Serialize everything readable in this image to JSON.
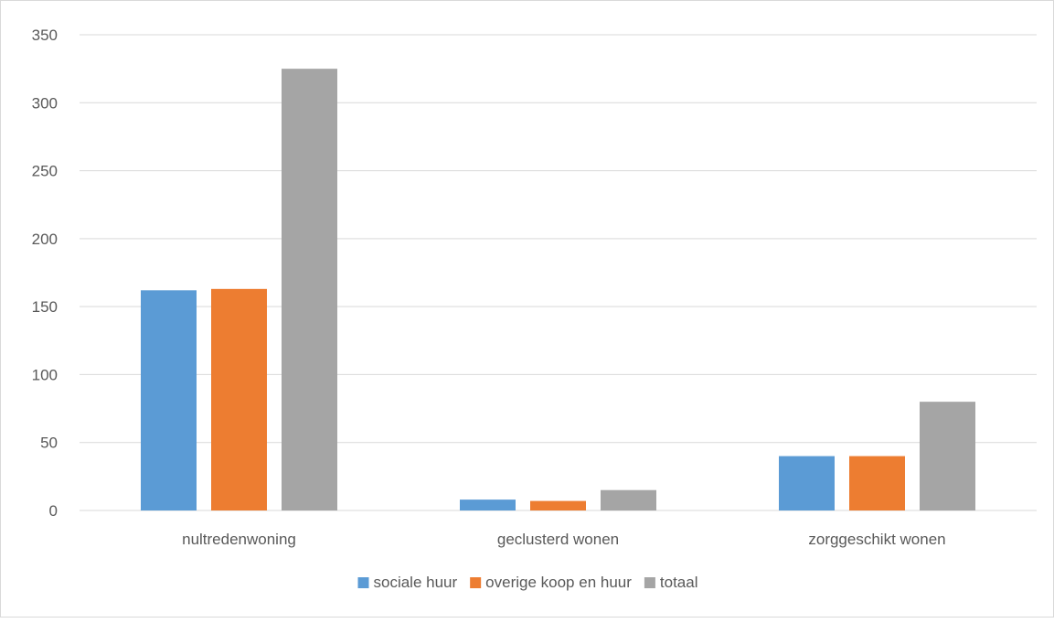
{
  "chart_data": {
    "type": "bar",
    "title": "",
    "xlabel": "",
    "ylabel": "",
    "categories": [
      "nultredenwoning",
      "geclusterd wonen",
      "zorggeschikt wonen"
    ],
    "series": [
      {
        "name": "sociale huur",
        "color": "#5B9BD5",
        "values": [
          162,
          8,
          40
        ]
      },
      {
        "name": "overige koop en huur",
        "color": "#ED7D31",
        "values": [
          163,
          7,
          40
        ]
      },
      {
        "name": "totaal",
        "color": "#A5A5A5",
        "values": [
          325,
          15,
          80
        ]
      }
    ],
    "ylim": [
      0,
      350
    ],
    "yticks": [
      0,
      50,
      100,
      150,
      200,
      250,
      300,
      350
    ],
    "grid": true,
    "legend_position": "bottom"
  }
}
